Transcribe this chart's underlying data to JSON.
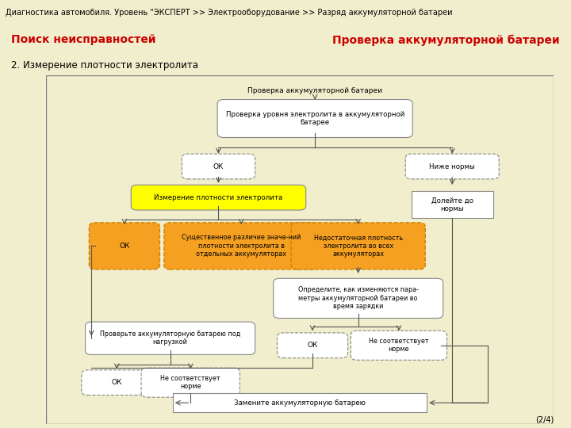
{
  "title_bar": "Диагностика автомобиля. Уровень \"ЭКСПЕРТ >> Электрооборудование >> Разряд аккумуляторной батареи",
  "left_header": "Поиск неисправностей",
  "right_header": "Проверка аккумуляторной батареи",
  "section_title": "2. Измерение плотности электролита",
  "page_num": "(2/4)",
  "bg_outer": "#f0eecc",
  "bg_inner": "#b8d4e0",
  "header_bg": "#add8e6",
  "title_bar_bg": "#d0d0d0"
}
